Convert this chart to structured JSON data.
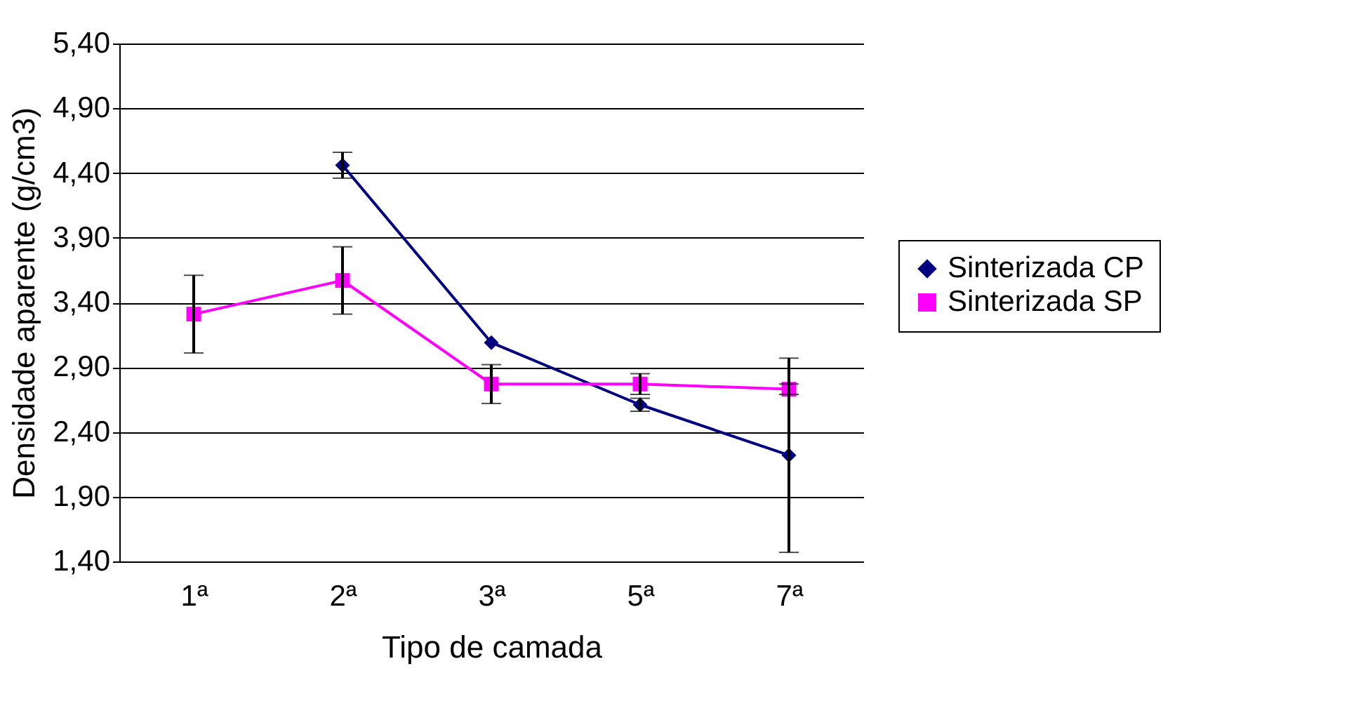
{
  "chart_data": {
    "type": "line",
    "xlabel": "Tipo de camada",
    "ylabel": "Densidade aparente (g/cm3)",
    "categories": [
      "1ª",
      "2ª",
      "3ª",
      "5ª",
      "7ª"
    ],
    "series": [
      {
        "name": "Sinterizada CP",
        "color": "#000080",
        "marker": "diamond",
        "values": [
          null,
          4.46,
          3.09,
          2.61,
          2.22
        ],
        "errors": [
          null,
          0.1,
          null,
          0.05,
          0.75
        ]
      },
      {
        "name": "Sinterizada SP",
        "color": "#ff00ff",
        "marker": "square",
        "values": [
          3.31,
          3.57,
          2.77,
          2.77,
          2.73
        ],
        "errors": [
          0.3,
          0.26,
          0.15,
          0.08,
          0.04
        ]
      }
    ],
    "ylim": [
      1.4,
      5.4
    ],
    "yticks": [
      {
        "value": 1.4,
        "label": "1,40"
      },
      {
        "value": 1.9,
        "label": "1,90"
      },
      {
        "value": 2.4,
        "label": "2,40"
      },
      {
        "value": 2.9,
        "label": "2,90"
      },
      {
        "value": 3.4,
        "label": "3,40"
      },
      {
        "value": 3.9,
        "label": "3,90"
      },
      {
        "value": 4.4,
        "label": "4,40"
      },
      {
        "value": 4.9,
        "label": "4,90"
      },
      {
        "value": 5.4,
        "label": "5,40"
      }
    ],
    "grid": "y",
    "legend": "right"
  }
}
